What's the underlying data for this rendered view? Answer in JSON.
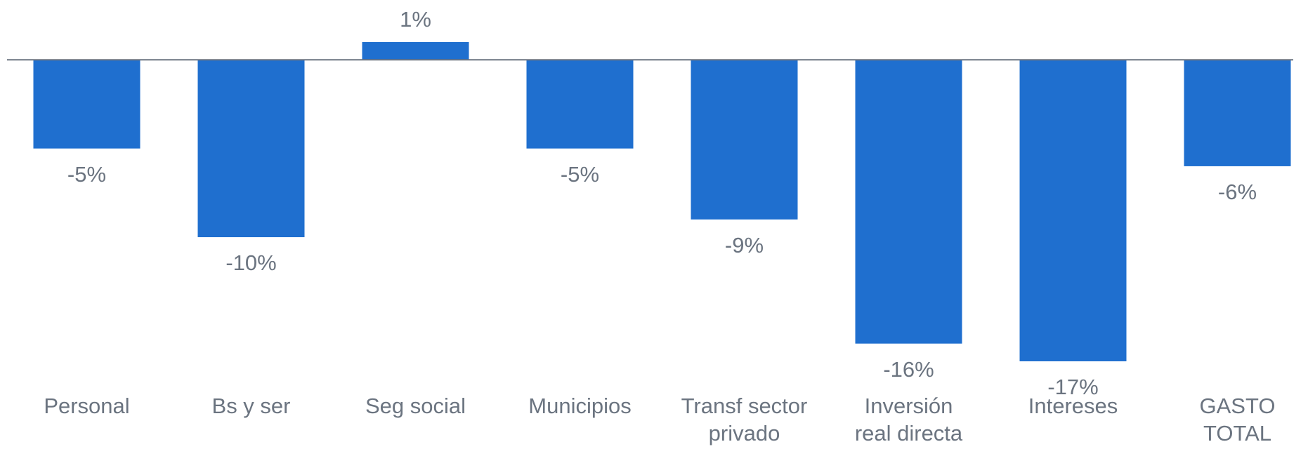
{
  "chart_data": {
    "type": "bar",
    "categories": [
      "Personal",
      "Bs y ser",
      "Seg social",
      "Municipios",
      "Transf sector\nprivado",
      "Inversión\nreal directa",
      "Intereses",
      "GASTO\nTOTAL"
    ],
    "values": [
      -5,
      -10,
      1,
      -5,
      -9,
      -16,
      -17,
      -6
    ],
    "value_labels": [
      "-5%",
      "-10%",
      "1%",
      "-5%",
      "-9%",
      "-16%",
      "-17%",
      "-6%"
    ],
    "color": "#1f6fcf"
  }
}
